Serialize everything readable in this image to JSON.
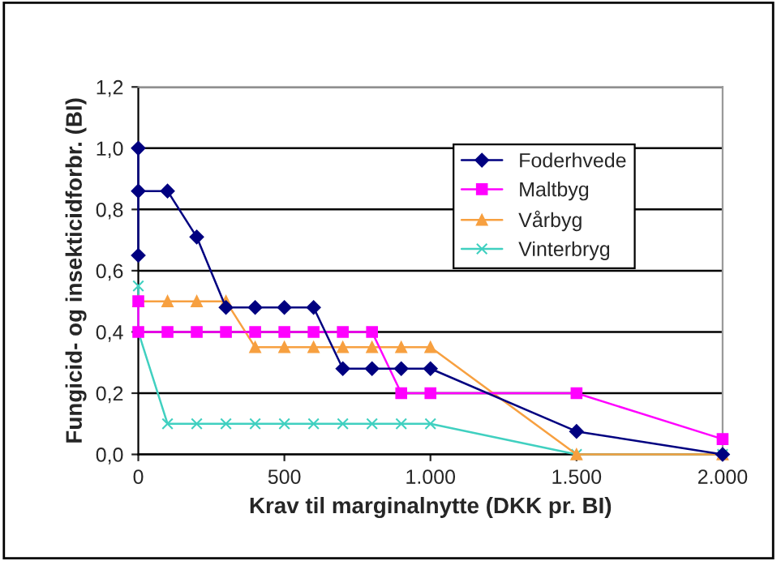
{
  "chart_data": {
    "type": "line",
    "xlabel": "Krav til marginalnytte (DKK pr. BI)",
    "ylabel": "Fungicid- og insekticidforbr. (BI)",
    "xlim": [
      0,
      2000
    ],
    "ylim": [
      0,
      1.2
    ],
    "xticks": [
      {
        "value": 0,
        "label": "0"
      },
      {
        "value": 500,
        "label": "500"
      },
      {
        "value": 1000,
        "label": "1.000"
      },
      {
        "value": 1500,
        "label": "1.500"
      },
      {
        "value": 2000,
        "label": "2.000"
      }
    ],
    "yticks": [
      {
        "value": 0,
        "label": "0,0"
      },
      {
        "value": 0.2,
        "label": "0,2"
      },
      {
        "value": 0.4,
        "label": "0,4"
      },
      {
        "value": 0.6,
        "label": "0,6"
      },
      {
        "value": 0.8,
        "label": "0,8"
      },
      {
        "value": 1.0,
        "label": "1,0"
      },
      {
        "value": 1.2,
        "label": "1,2"
      }
    ],
    "grid": "y",
    "legend": "top right",
    "series": [
      {
        "name": "Foderhvede",
        "color": "#000080",
        "marker": "diamond",
        "x": [
          0,
          0,
          0,
          100,
          200,
          300,
          400,
          500,
          600,
          700,
          800,
          900,
          1000,
          1500,
          2000
        ],
        "values": [
          0.65,
          1.0,
          0.86,
          0.86,
          0.71,
          0.48,
          0.48,
          0.48,
          0.48,
          0.28,
          0.28,
          0.28,
          0.28,
          0.075,
          0.0
        ]
      },
      {
        "name": "Maltbyg",
        "color": "#ff00ff",
        "marker": "square",
        "x": [
          0,
          0,
          100,
          200,
          300,
          400,
          500,
          600,
          700,
          800,
          900,
          1000,
          1500,
          2000
        ],
        "values": [
          0.5,
          0.4,
          0.4,
          0.4,
          0.4,
          0.4,
          0.4,
          0.4,
          0.4,
          0.4,
          0.2,
          0.2,
          0.2,
          0.05
        ]
      },
      {
        "name": "Vårbyg",
        "color": "#f7a040",
        "marker": "triangle",
        "x": [
          0,
          100,
          200,
          300,
          400,
          500,
          600,
          700,
          800,
          900,
          1000,
          1500,
          2000
        ],
        "values": [
          0.5,
          0.5,
          0.5,
          0.5,
          0.35,
          0.35,
          0.35,
          0.35,
          0.35,
          0.35,
          0.35,
          0.0,
          0.0
        ]
      },
      {
        "name": "Vinterbryg",
        "color": "#40d0c0",
        "marker": "cross",
        "x": [
          0,
          0,
          100,
          200,
          300,
          400,
          500,
          600,
          700,
          800,
          900,
          1000,
          1500,
          2000
        ],
        "values": [
          0.55,
          0.4,
          0.1,
          0.1,
          0.1,
          0.1,
          0.1,
          0.1,
          0.1,
          0.1,
          0.1,
          0.1,
          0.0,
          0.0
        ]
      }
    ]
  }
}
